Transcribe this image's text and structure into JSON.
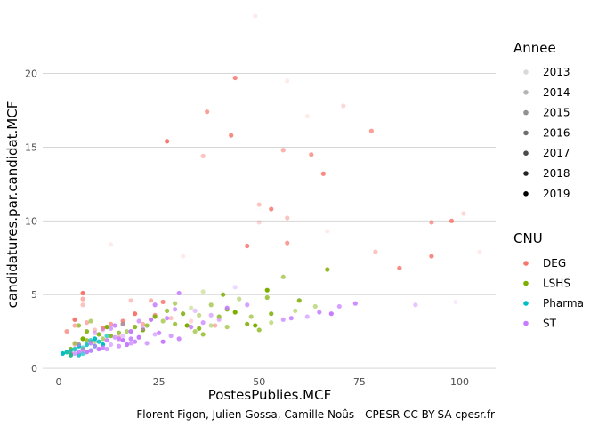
{
  "chart_data": {
    "type": "scatter",
    "xlabel": "PostesPublies.MCF",
    "ylabel": "candidatures.par.candidat.MCF",
    "xlim": [
      -4,
      109
    ],
    "ylim": [
      -0.3,
      24.5
    ],
    "x_ticks": [
      0,
      25,
      50,
      75,
      100
    ],
    "y_ticks": [
      0,
      5,
      10,
      15,
      20
    ],
    "grid": true,
    "caption": "Florent Figon, Julien Gossa, Camille Noûs - CPESR CC BY-SA cpesr.fr",
    "legends": {
      "alpha": {
        "title": "Annee",
        "items": [
          {
            "label": "2013",
            "opacity": 0.15
          },
          {
            "label": "2014",
            "opacity": 0.29
          },
          {
            "label": "2015",
            "opacity": 0.43
          },
          {
            "label": "2016",
            "opacity": 0.57
          },
          {
            "label": "2017",
            "opacity": 0.71
          },
          {
            "label": "2018",
            "opacity": 0.86
          },
          {
            "label": "2019",
            "opacity": 1.0
          }
        ]
      },
      "color": {
        "title": "CNU",
        "items": [
          {
            "label": "DEG",
            "color": "#F8766D"
          },
          {
            "label": "LSHS",
            "color": "#7CAE00"
          },
          {
            "label": "Pharma",
            "color": "#00BFC4"
          },
          {
            "label": "ST",
            "color": "#C77CFF"
          }
        ]
      }
    },
    "series": [
      {
        "name": "DEG",
        "color": "#F8766D",
        "points": [
          [
            49,
            23.9,
            0.15
          ],
          [
            44,
            19.7,
            0.86
          ],
          [
            57,
            19.5,
            0.15
          ],
          [
            37,
            17.4,
            0.71
          ],
          [
            71,
            17.8,
            0.29
          ],
          [
            62,
            17.1,
            0.15
          ],
          [
            78,
            16.1,
            0.71
          ],
          [
            43,
            15.8,
            0.86
          ],
          [
            27,
            15.4,
            1.0
          ],
          [
            56,
            14.8,
            0.57
          ],
          [
            36,
            14.4,
            0.43
          ],
          [
            63,
            14.5,
            0.71
          ],
          [
            66,
            13.2,
            0.86
          ],
          [
            50,
            11.1,
            0.43
          ],
          [
            53,
            10.8,
            0.86
          ],
          [
            57,
            10.2,
            0.43
          ],
          [
            101,
            10.5,
            0.29
          ],
          [
            98,
            10.0,
            0.86
          ],
          [
            93,
            9.9,
            0.71
          ],
          [
            50,
            9.9,
            0.29
          ],
          [
            67,
            9.3,
            0.15
          ],
          [
            57,
            8.5,
            0.71
          ],
          [
            47,
            8.3,
            0.86
          ],
          [
            13,
            8.4,
            0.15
          ],
          [
            79,
            7.9,
            0.43
          ],
          [
            93,
            7.6,
            0.86
          ],
          [
            105,
            7.9,
            0.15
          ],
          [
            85,
            6.8,
            0.86
          ],
          [
            31,
            7.6,
            0.15
          ],
          [
            6,
            5.1,
            1.0
          ],
          [
            6,
            4.7,
            0.57
          ],
          [
            6,
            4.3,
            0.43
          ],
          [
            18,
            4.6,
            0.43
          ],
          [
            23,
            4.6,
            0.57
          ],
          [
            26,
            4.5,
            0.86
          ],
          [
            4,
            3.3,
            1.0
          ],
          [
            4,
            2.9,
            0.57
          ],
          [
            2,
            2.5,
            0.71
          ],
          [
            7,
            3.1,
            0.57
          ],
          [
            9,
            2.6,
            0.43
          ],
          [
            11,
            2.7,
            0.86
          ],
          [
            13,
            3.0,
            0.71
          ],
          [
            16,
            3.2,
            0.86
          ],
          [
            19,
            3.7,
            1.0
          ],
          [
            21,
            3.0,
            0.57
          ],
          [
            24,
            3.6,
            0.71
          ],
          [
            28,
            3.4,
            0.43
          ],
          [
            33,
            3.2,
            0.29
          ],
          [
            39,
            2.9,
            0.57
          ],
          [
            4,
            1.6,
            0.43
          ],
          [
            6,
            1.3,
            0.71
          ],
          [
            8,
            1.8,
            0.57
          ],
          [
            15,
            2.1,
            0.43
          ],
          [
            3,
            1.0,
            0.86
          ]
        ]
      },
      {
        "name": "LSHS",
        "color": "#7CAE00",
        "points": [
          [
            67,
            6.7,
            0.86
          ],
          [
            56,
            6.2,
            0.57
          ],
          [
            52,
            5.3,
            1.0
          ],
          [
            41,
            5.0,
            0.86
          ],
          [
            36,
            5.2,
            0.29
          ],
          [
            45,
            4.7,
            0.43
          ],
          [
            52,
            4.8,
            0.71
          ],
          [
            60,
            4.6,
            0.86
          ],
          [
            64,
            4.2,
            0.43
          ],
          [
            38,
            4.3,
            0.57
          ],
          [
            42,
            4.0,
            0.86
          ],
          [
            29,
            4.4,
            0.57
          ],
          [
            33,
            4.1,
            0.29
          ],
          [
            27,
            3.9,
            0.71
          ],
          [
            31,
            3.7,
            0.86
          ],
          [
            35,
            3.6,
            0.43
          ],
          [
            40,
            3.5,
            0.71
          ],
          [
            44,
            3.8,
            1.0
          ],
          [
            48,
            3.5,
            0.57
          ],
          [
            53,
            3.7,
            0.86
          ],
          [
            59,
            3.9,
            0.43
          ],
          [
            24,
            3.5,
            0.86
          ],
          [
            26,
            3.2,
            0.57
          ],
          [
            29,
            3.0,
            0.71
          ],
          [
            32,
            2.9,
            1.0
          ],
          [
            35,
            2.7,
            0.86
          ],
          [
            38,
            2.9,
            0.43
          ],
          [
            42,
            2.8,
            0.57
          ],
          [
            47,
            3.0,
            0.86
          ],
          [
            50,
            2.6,
            0.71
          ],
          [
            53,
            3.1,
            0.43
          ],
          [
            49,
            2.9,
            1.0
          ],
          [
            22,
            2.9,
            0.71
          ],
          [
            19,
            2.8,
            0.86
          ],
          [
            17,
            2.5,
            0.57
          ],
          [
            21,
            2.6,
            1.0
          ],
          [
            15,
            2.4,
            0.71
          ],
          [
            13,
            2.2,
            0.86
          ],
          [
            11,
            2.0,
            0.57
          ],
          [
            9,
            1.8,
            0.43
          ],
          [
            10,
            2.3,
            0.86
          ],
          [
            7,
            1.9,
            0.71
          ],
          [
            6,
            2.0,
            1.0
          ],
          [
            5,
            1.6,
            0.86
          ],
          [
            4,
            1.7,
            0.57
          ],
          [
            5,
            2.9,
            0.71
          ],
          [
            7,
            2.5,
            0.86
          ],
          [
            8,
            3.2,
            0.57
          ],
          [
            3,
            1.3,
            0.86
          ],
          [
            3,
            0.9,
            1.0
          ],
          [
            2,
            1.1,
            0.71
          ],
          [
            12,
            2.8,
            1.0
          ],
          [
            16,
            3.0,
            0.86
          ],
          [
            36,
            2.3,
            0.71
          ],
          [
            34,
            2.5,
            0.57
          ]
        ]
      },
      {
        "name": "Pharma",
        "color": "#00BFC4",
        "points": [
          [
            1,
            1.0,
            1.0
          ],
          [
            2,
            1.1,
            0.86
          ],
          [
            3,
            1.2,
            0.71
          ],
          [
            4,
            1.3,
            0.86
          ],
          [
            5,
            1.5,
            1.0
          ],
          [
            6,
            1.4,
            0.57
          ],
          [
            7,
            1.6,
            0.86
          ],
          [
            8,
            1.9,
            0.71
          ],
          [
            9,
            2.0,
            1.0
          ],
          [
            10,
            1.8,
            0.86
          ],
          [
            6,
            1.0,
            0.71
          ],
          [
            8,
            1.2,
            0.57
          ],
          [
            9,
            1.5,
            0.86
          ],
          [
            11,
            1.6,
            1.0
          ],
          [
            12,
            2.2,
            0.71
          ],
          [
            5,
            0.9,
            0.86
          ],
          [
            3,
            0.9,
            0.71
          ]
        ]
      },
      {
        "name": "ST",
        "color": "#C77CFF",
        "points": [
          [
            99,
            4.5,
            0.15
          ],
          [
            89,
            4.3,
            0.43
          ],
          [
            74,
            4.4,
            0.86
          ],
          [
            70,
            4.2,
            0.71
          ],
          [
            68,
            3.7,
            1.0
          ],
          [
            65,
            3.8,
            0.86
          ],
          [
            62,
            3.5,
            0.57
          ],
          [
            58,
            3.4,
            0.86
          ],
          [
            56,
            3.3,
            0.71
          ],
          [
            44,
            5.5,
            0.29
          ],
          [
            47,
            4.3,
            0.71
          ],
          [
            42,
            4.1,
            0.86
          ],
          [
            30,
            5.1,
            0.86
          ],
          [
            24,
            4.3,
            0.86
          ],
          [
            29,
            4.0,
            0.71
          ],
          [
            34,
            3.9,
            0.43
          ],
          [
            38,
            3.6,
            0.57
          ],
          [
            27,
            3.4,
            0.86
          ],
          [
            23,
            3.3,
            1.0
          ],
          [
            20,
            3.2,
            0.71
          ],
          [
            16,
            3.0,
            0.57
          ],
          [
            14,
            2.9,
            0.86
          ],
          [
            13,
            2.7,
            0.71
          ],
          [
            18,
            2.5,
            1.0
          ],
          [
            21,
            2.7,
            0.57
          ],
          [
            25,
            2.4,
            0.86
          ],
          [
            28,
            2.2,
            0.71
          ],
          [
            30,
            2.0,
            0.86
          ],
          [
            26,
            1.8,
            1.0
          ],
          [
            22,
            1.7,
            0.71
          ],
          [
            19,
            1.8,
            0.86
          ],
          [
            17,
            1.6,
            1.0
          ],
          [
            15,
            1.5,
            0.71
          ],
          [
            13,
            1.6,
            0.57
          ],
          [
            11,
            1.4,
            0.86
          ],
          [
            10,
            1.3,
            1.0
          ],
          [
            9,
            1.5,
            0.71
          ],
          [
            8,
            1.2,
            0.86
          ],
          [
            7,
            1.1,
            1.0
          ],
          [
            6,
            1.2,
            0.57
          ],
          [
            5,
            1.1,
            0.86
          ],
          [
            4,
            1.0,
            0.71
          ],
          [
            12,
            1.9,
            0.86
          ],
          [
            14,
            2.1,
            0.71
          ],
          [
            16,
            2.2,
            0.43
          ],
          [
            9,
            2.4,
            0.57
          ],
          [
            11,
            2.6,
            0.43
          ],
          [
            18,
            2.0,
            0.86
          ],
          [
            24,
            2.3,
            0.57
          ],
          [
            20,
            2.1,
            1.0
          ],
          [
            36,
            3.1,
            0.71
          ],
          [
            33,
            2.8,
            0.86
          ],
          [
            40,
            3.3,
            0.57
          ],
          [
            16,
            1.9,
            1.0
          ],
          [
            18,
            1.7,
            0.71
          ],
          [
            15,
            2.0,
            0.86
          ],
          [
            5,
            1.6,
            0.57
          ],
          [
            8,
            1.7,
            0.86
          ],
          [
            12,
            1.3,
            0.71
          ]
        ]
      }
    ]
  }
}
